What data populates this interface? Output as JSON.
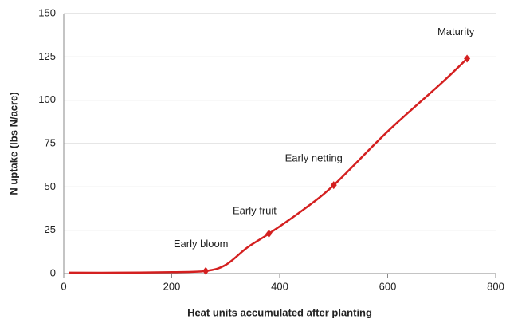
{
  "chart_data": {
    "type": "line",
    "xlabel": "Heat units accumulated after planting",
    "ylabel": "N uptake (lbs N/acre)",
    "x": [
      10,
      100,
      200,
      263,
      300,
      340,
      380,
      440,
      500,
      600,
      700,
      747
    ],
    "values": [
      0.5,
      0.5,
      0.8,
      1.5,
      5,
      15,
      23,
      36,
      51,
      82,
      110,
      124
    ],
    "color": "#d42020",
    "markers": {
      "x": [
        263,
        380,
        500,
        747
      ],
      "values": [
        1.5,
        23,
        51,
        124
      ],
      "labels": [
        "Early bloom",
        "Early fruit",
        "Early netting",
        "Maturity"
      ]
    },
    "xlim": [
      0,
      800
    ],
    "xticks": [
      0,
      200,
      400,
      600,
      800
    ],
    "ylim": [
      0,
      150
    ],
    "yticks": [
      0,
      25,
      50,
      75,
      100,
      125,
      150
    ],
    "grid": true
  }
}
